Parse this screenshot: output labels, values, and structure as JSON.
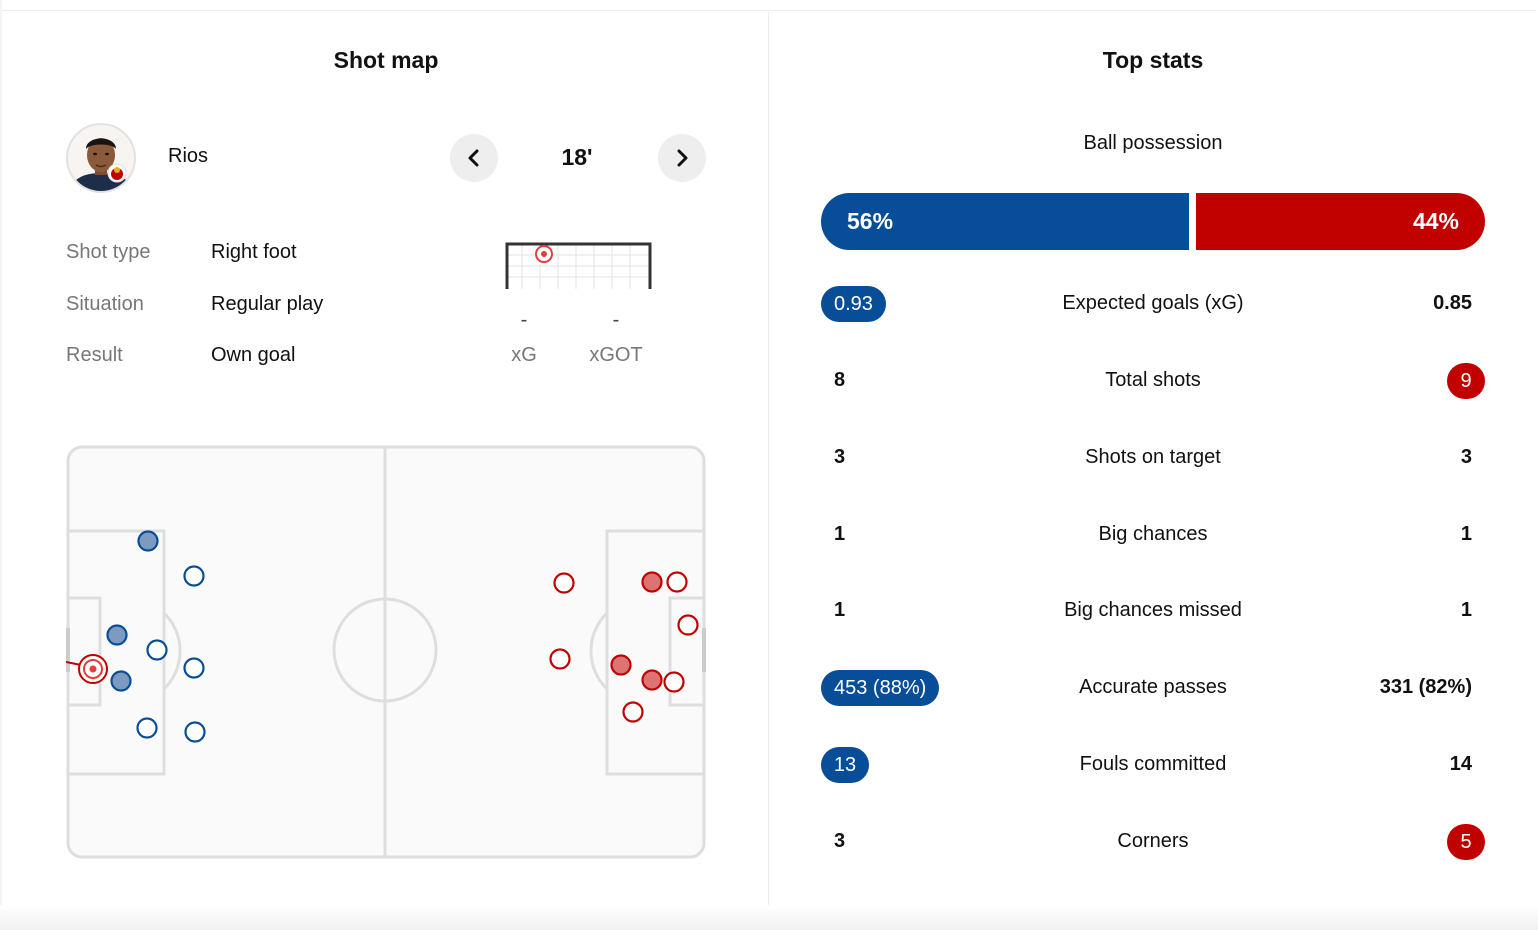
{
  "colors": {
    "home": "#084d97",
    "away": "#c10000",
    "pitch_line": "#dedede"
  },
  "shot_map": {
    "title": "Shot map",
    "player": {
      "name": "Rios",
      "avatar_icon": "player-avatar-icon"
    },
    "nav": {
      "prev_icon": "chevron-left-icon",
      "next_icon": "chevron-right-icon",
      "minute": "18'"
    },
    "details": [
      {
        "label": "Shot type",
        "value": "Right foot"
      },
      {
        "label": "Situation",
        "value": "Regular play"
      },
      {
        "label": "Result",
        "value": "Own goal"
      }
    ],
    "xg": {
      "value": "-",
      "label": "xG"
    },
    "xgot": {
      "value": "-",
      "label": "xGOT"
    }
  },
  "top_stats": {
    "title": "Top stats",
    "possession": {
      "label": "Ball possession",
      "home": "56%",
      "away": "44%"
    },
    "rows": [
      {
        "name": "Expected goals (xG)",
        "home": "0.93",
        "away": "0.85",
        "highlight": "home"
      },
      {
        "name": "Total shots",
        "home": "8",
        "away": "9",
        "highlight": "away"
      },
      {
        "name": "Shots on target",
        "home": "3",
        "away": "3",
        "highlight": "none"
      },
      {
        "name": "Big chances",
        "home": "1",
        "away": "1",
        "highlight": "none"
      },
      {
        "name": "Big chances missed",
        "home": "1",
        "away": "1",
        "highlight": "none"
      },
      {
        "name": "Accurate passes",
        "home": "453 (88%)",
        "away": "331 (82%)",
        "highlight": "home"
      },
      {
        "name": "Fouls committed",
        "home": "13",
        "away": "14",
        "highlight": "home"
      },
      {
        "name": "Corners",
        "home": "3",
        "away": "5",
        "highlight": "away"
      }
    ]
  }
}
